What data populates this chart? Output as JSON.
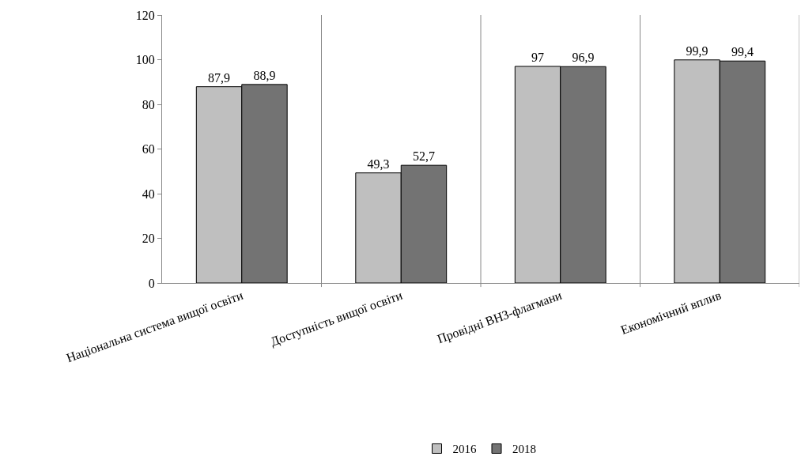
{
  "chart_data": {
    "type": "bar",
    "categories": [
      "Національна система вищої освіти",
      "Доступність вищої освіти",
      "Провідні ВНЗ-флагмани",
      "Економічний вплив"
    ],
    "series": [
      {
        "name": "2016",
        "color": "#bfbfbf",
        "values": [
          87.9,
          49.3,
          97,
          99.9
        ],
        "value_labels": [
          "87,9",
          "49,3",
          "97",
          "99,9"
        ]
      },
      {
        "name": "2018",
        "color": "#737373",
        "values": [
          88.9,
          52.7,
          96.9,
          99.4
        ],
        "value_labels": [
          "88,9",
          "52,7",
          "96,9",
          "99,4"
        ]
      }
    ],
    "ylim": [
      0,
      120
    ],
    "yticks": [
      0,
      20,
      40,
      60,
      80,
      100,
      120
    ],
    "grid": "x",
    "legend": "bottom"
  }
}
